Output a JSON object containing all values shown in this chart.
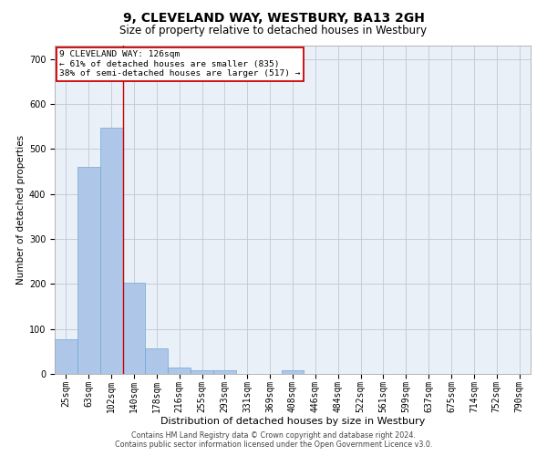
{
  "title": "9, CLEVELAND WAY, WESTBURY, BA13 2GH",
  "subtitle": "Size of property relative to detached houses in Westbury",
  "xlabel": "Distribution of detached houses by size in Westbury",
  "ylabel": "Number of detached properties",
  "footer_line1": "Contains HM Land Registry data © Crown copyright and database right 2024.",
  "footer_line2": "Contains public sector information licensed under the Open Government Licence v3.0.",
  "categories": [
    "25sqm",
    "63sqm",
    "102sqm",
    "140sqm",
    "178sqm",
    "216sqm",
    "255sqm",
    "293sqm",
    "331sqm",
    "369sqm",
    "408sqm",
    "446sqm",
    "484sqm",
    "522sqm",
    "561sqm",
    "599sqm",
    "637sqm",
    "675sqm",
    "714sqm",
    "752sqm",
    "790sqm"
  ],
  "bar_heights": [
    78,
    461,
    548,
    203,
    57,
    14,
    9,
    9,
    0,
    0,
    8,
    0,
    0,
    0,
    0,
    0,
    0,
    0,
    0,
    0,
    0
  ],
  "bar_color": "#aec6e8",
  "bar_edge_color": "#6fa8d4",
  "background_color": "#eaf0f8",
  "grid_color": "#c0c8d8",
  "ylim": [
    0,
    730
  ],
  "yticks": [
    0,
    100,
    200,
    300,
    400,
    500,
    600,
    700
  ],
  "annotation_box_text": "9 CLEVELAND WAY: 126sqm\n← 61% of detached houses are smaller (835)\n38% of semi-detached houses are larger (517) →",
  "annotation_box_color": "#cc0000",
  "red_line_x": 2.5,
  "title_fontsize": 10,
  "subtitle_fontsize": 8.5,
  "ylabel_fontsize": 7.5,
  "xlabel_fontsize": 8,
  "tick_fontsize": 7,
  "annot_fontsize": 6.8,
  "footer_fontsize": 5.8
}
